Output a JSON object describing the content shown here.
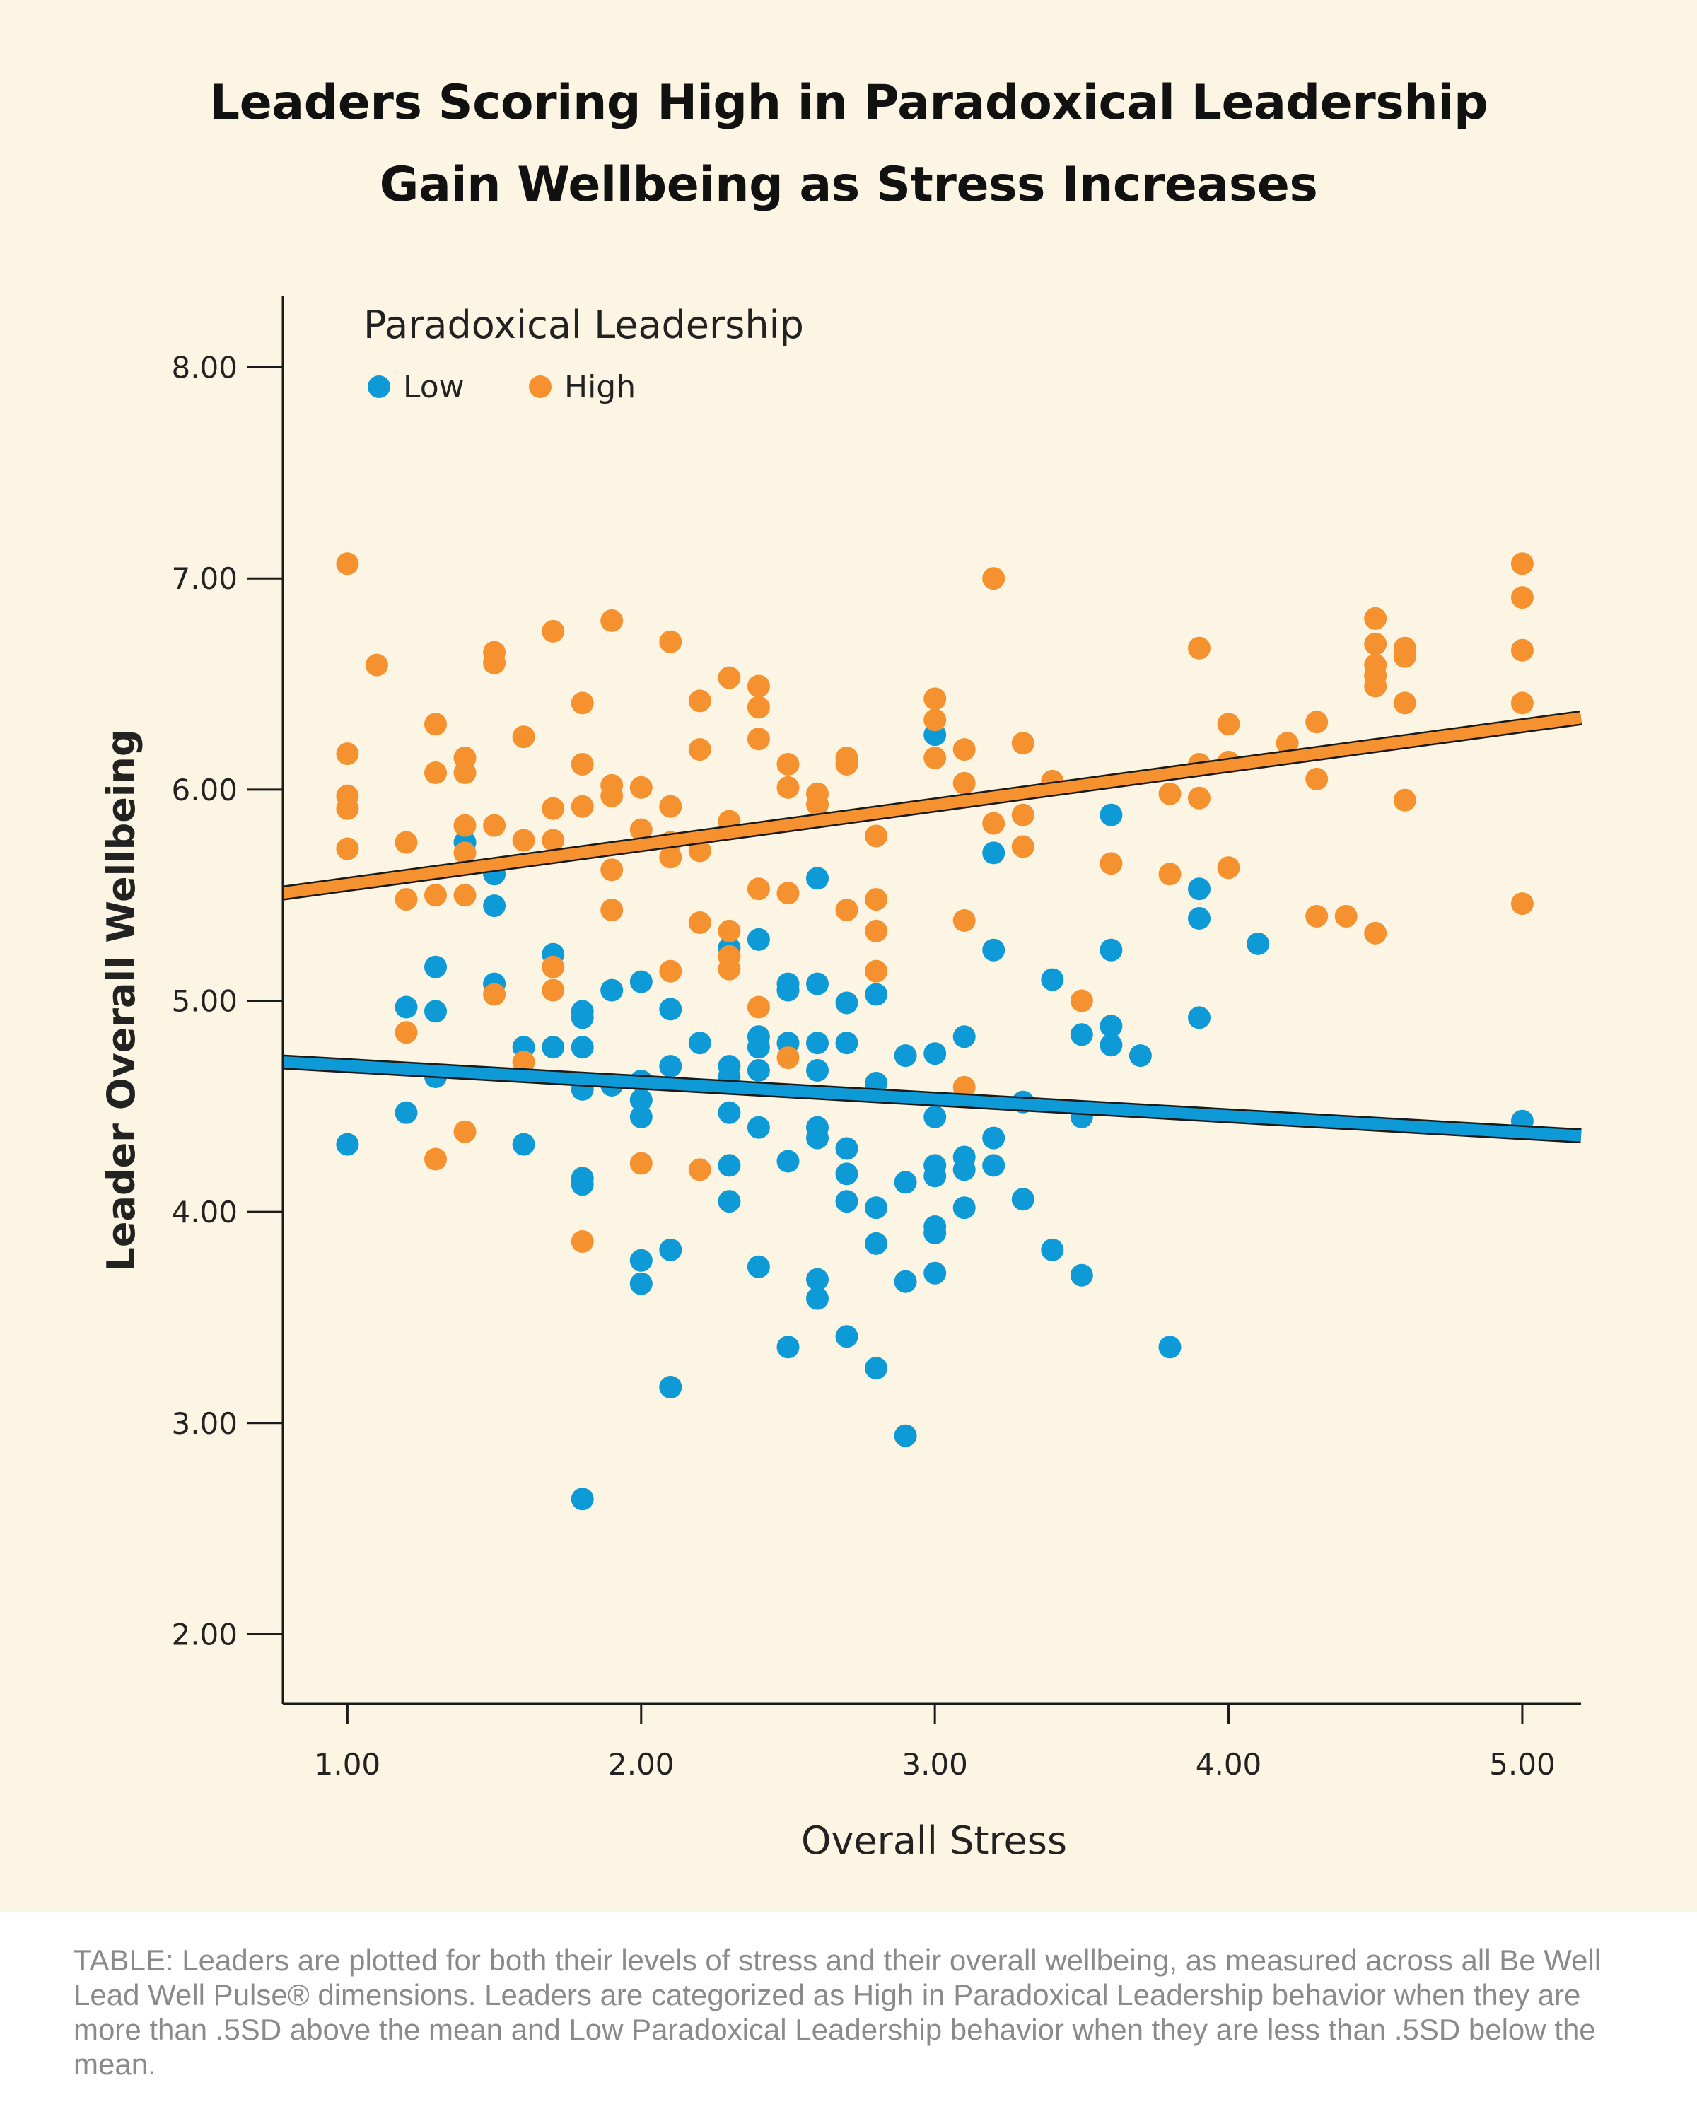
{
  "title": {
    "line1": "Leaders Scoring High in Paradoxical Leadership",
    "line2": "Gain Wellbeing as Stress Increases"
  },
  "legend": {
    "title": "Paradoxical Leadership",
    "items": [
      {
        "label": "Low",
        "color": "#0d9ad6"
      },
      {
        "label": "High",
        "color": "#f5922f"
      }
    ],
    "placement": "top-left"
  },
  "caption": "TABLE: Leaders are plotted for both their levels of stress and their overall wellbeing, as measured across all Be Well Lead Well Pulse® dimensions. Leaders are categorized as High in Paradoxical Leadership behavior when they are more than .5SD above the mean and Low Paradoxical Leadership behavior when they are less than .5SD below the mean.",
  "chart_data": {
    "type": "scatter",
    "xlabel": "Overall Stress",
    "ylabel": "Leader Overall Wellbeing",
    "xlim": [
      0.78,
      5.2
    ],
    "ylim": [
      1.67,
      8.34
    ],
    "xticks": [
      "1.00",
      "2.00",
      "3.00",
      "4.00",
      "5.00"
    ],
    "yticks": [
      "2.00",
      "3.00",
      "4.00",
      "5.00",
      "6.00",
      "7.00",
      "8.00"
    ],
    "grid": false,
    "series": [
      {
        "name": "Low",
        "color": "#0d9ad6",
        "fit_line": {
          "x": [
            0.78,
            5.2
          ],
          "y": [
            4.71,
            4.36
          ]
        },
        "points": [
          [
            1.0,
            4.32
          ],
          [
            1.2,
            4.97
          ],
          [
            1.2,
            4.47
          ],
          [
            1.3,
            5.16
          ],
          [
            1.3,
            4.95
          ],
          [
            1.3,
            4.64
          ],
          [
            1.4,
            5.75
          ],
          [
            1.5,
            5.6
          ],
          [
            1.5,
            5.45
          ],
          [
            1.5,
            5.08
          ],
          [
            1.6,
            4.78
          ],
          [
            1.6,
            4.32
          ],
          [
            1.7,
            5.22
          ],
          [
            1.7,
            4.78
          ],
          [
            1.8,
            4.95
          ],
          [
            1.8,
            4.92
          ],
          [
            1.8,
            4.78
          ],
          [
            1.8,
            4.58
          ],
          [
            1.8,
            4.16
          ],
          [
            1.8,
            4.13
          ],
          [
            1.8,
            2.64
          ],
          [
            1.9,
            5.05
          ],
          [
            1.9,
            4.6
          ],
          [
            2.0,
            5.09
          ],
          [
            2.0,
            4.62
          ],
          [
            2.0,
            4.53
          ],
          [
            2.0,
            4.45
          ],
          [
            2.0,
            3.77
          ],
          [
            2.0,
            3.66
          ],
          [
            2.1,
            4.96
          ],
          [
            2.1,
            4.69
          ],
          [
            2.1,
            3.82
          ],
          [
            2.1,
            3.17
          ],
          [
            2.2,
            4.8
          ],
          [
            2.3,
            5.25
          ],
          [
            2.3,
            4.69
          ],
          [
            2.3,
            4.64
          ],
          [
            2.3,
            4.47
          ],
          [
            2.3,
            4.22
          ],
          [
            2.3,
            4.05
          ],
          [
            2.4,
            5.29
          ],
          [
            2.4,
            4.83
          ],
          [
            2.4,
            4.78
          ],
          [
            2.4,
            4.67
          ],
          [
            2.4,
            4.4
          ],
          [
            2.4,
            3.74
          ],
          [
            2.5,
            5.08
          ],
          [
            2.5,
            5.05
          ],
          [
            2.5,
            4.8
          ],
          [
            2.5,
            4.24
          ],
          [
            2.5,
            3.36
          ],
          [
            2.6,
            5.58
          ],
          [
            2.6,
            5.08
          ],
          [
            2.6,
            4.8
          ],
          [
            2.6,
            4.67
          ],
          [
            2.6,
            4.4
          ],
          [
            2.6,
            4.35
          ],
          [
            2.6,
            3.68
          ],
          [
            2.6,
            3.59
          ],
          [
            2.7,
            4.99
          ],
          [
            2.7,
            4.8
          ],
          [
            2.7,
            4.3
          ],
          [
            2.7,
            4.18
          ],
          [
            2.7,
            4.05
          ],
          [
            2.7,
            3.41
          ],
          [
            2.8,
            5.03
          ],
          [
            2.8,
            4.61
          ],
          [
            2.8,
            4.02
          ],
          [
            2.8,
            3.85
          ],
          [
            2.8,
            3.26
          ],
          [
            2.9,
            4.74
          ],
          [
            2.9,
            4.14
          ],
          [
            2.9,
            3.67
          ],
          [
            2.9,
            2.94
          ],
          [
            3.0,
            6.26
          ],
          [
            3.0,
            4.75
          ],
          [
            3.0,
            4.45
          ],
          [
            3.0,
            4.22
          ],
          [
            3.0,
            4.17
          ],
          [
            3.0,
            3.93
          ],
          [
            3.0,
            3.9
          ],
          [
            3.0,
            3.71
          ],
          [
            3.1,
            4.83
          ],
          [
            3.1,
            4.26
          ],
          [
            3.1,
            4.2
          ],
          [
            3.1,
            4.02
          ],
          [
            3.2,
            5.7
          ],
          [
            3.2,
            5.24
          ],
          [
            3.2,
            4.35
          ],
          [
            3.2,
            4.22
          ],
          [
            3.3,
            4.52
          ],
          [
            3.3,
            4.06
          ],
          [
            3.4,
            5.1
          ],
          [
            3.4,
            3.82
          ],
          [
            3.5,
            4.84
          ],
          [
            3.5,
            4.45
          ],
          [
            3.5,
            3.7
          ],
          [
            3.6,
            5.88
          ],
          [
            3.6,
            5.24
          ],
          [
            3.6,
            4.88
          ],
          [
            3.6,
            4.79
          ],
          [
            3.7,
            4.74
          ],
          [
            3.8,
            3.36
          ],
          [
            3.9,
            5.53
          ],
          [
            3.9,
            5.39
          ],
          [
            3.9,
            4.92
          ],
          [
            4.1,
            5.27
          ],
          [
            5.0,
            4.43
          ]
        ]
      },
      {
        "name": "High",
        "color": "#f5922f",
        "fit_line": {
          "x": [
            0.78,
            5.2
          ],
          "y": [
            5.51,
            6.34
          ]
        },
        "points": [
          [
            1.0,
            7.07
          ],
          [
            1.0,
            6.17
          ],
          [
            1.0,
            5.97
          ],
          [
            1.0,
            5.91
          ],
          [
            1.0,
            5.72
          ],
          [
            1.1,
            6.59
          ],
          [
            1.2,
            5.75
          ],
          [
            1.2,
            5.48
          ],
          [
            1.2,
            4.85
          ],
          [
            1.3,
            6.31
          ],
          [
            1.3,
            6.08
          ],
          [
            1.3,
            5.5
          ],
          [
            1.3,
            4.25
          ],
          [
            1.4,
            6.15
          ],
          [
            1.4,
            6.08
          ],
          [
            1.4,
            5.83
          ],
          [
            1.4,
            5.7
          ],
          [
            1.4,
            5.5
          ],
          [
            1.4,
            4.38
          ],
          [
            1.5,
            6.65
          ],
          [
            1.5,
            6.6
          ],
          [
            1.5,
            5.83
          ],
          [
            1.5,
            5.03
          ],
          [
            1.6,
            6.25
          ],
          [
            1.6,
            5.76
          ],
          [
            1.6,
            4.71
          ],
          [
            1.7,
            6.75
          ],
          [
            1.7,
            5.91
          ],
          [
            1.7,
            5.76
          ],
          [
            1.7,
            5.16
          ],
          [
            1.7,
            5.05
          ],
          [
            1.8,
            6.41
          ],
          [
            1.8,
            6.12
          ],
          [
            1.8,
            5.92
          ],
          [
            1.8,
            3.86
          ],
          [
            1.9,
            6.8
          ],
          [
            1.9,
            6.02
          ],
          [
            1.9,
            5.97
          ],
          [
            1.9,
            5.62
          ],
          [
            1.9,
            5.43
          ],
          [
            2.0,
            6.01
          ],
          [
            2.0,
            5.81
          ],
          [
            2.0,
            4.23
          ],
          [
            2.1,
            6.7
          ],
          [
            2.1,
            5.92
          ],
          [
            2.1,
            5.75
          ],
          [
            2.1,
            5.68
          ],
          [
            2.1,
            5.14
          ],
          [
            2.2,
            6.42
          ],
          [
            2.2,
            6.19
          ],
          [
            2.2,
            5.71
          ],
          [
            2.2,
            5.37
          ],
          [
            2.2,
            4.2
          ],
          [
            2.3,
            6.53
          ],
          [
            2.3,
            5.85
          ],
          [
            2.3,
            5.33
          ],
          [
            2.3,
            5.21
          ],
          [
            2.3,
            5.15
          ],
          [
            2.4,
            6.49
          ],
          [
            2.4,
            6.39
          ],
          [
            2.4,
            6.24
          ],
          [
            2.4,
            5.53
          ],
          [
            2.4,
            4.97
          ],
          [
            2.5,
            6.12
          ],
          [
            2.5,
            6.01
          ],
          [
            2.5,
            5.51
          ],
          [
            2.5,
            4.73
          ],
          [
            2.6,
            5.98
          ],
          [
            2.6,
            5.93
          ],
          [
            2.7,
            6.15
          ],
          [
            2.7,
            6.12
          ],
          [
            2.7,
            5.43
          ],
          [
            2.8,
            5.78
          ],
          [
            2.8,
            5.48
          ],
          [
            2.8,
            5.33
          ],
          [
            2.8,
            5.14
          ],
          [
            3.0,
            6.43
          ],
          [
            3.0,
            6.33
          ],
          [
            3.0,
            6.15
          ],
          [
            3.1,
            6.19
          ],
          [
            3.1,
            6.03
          ],
          [
            3.1,
            5.38
          ],
          [
            3.1,
            4.59
          ],
          [
            3.2,
            7.0
          ],
          [
            3.2,
            5.84
          ],
          [
            3.3,
            6.22
          ],
          [
            3.3,
            5.88
          ],
          [
            3.3,
            5.73
          ],
          [
            3.4,
            6.04
          ],
          [
            3.5,
            5.0
          ],
          [
            3.6,
            5.65
          ],
          [
            3.8,
            5.98
          ],
          [
            3.8,
            5.6
          ],
          [
            3.9,
            6.67
          ],
          [
            3.9,
            6.12
          ],
          [
            3.9,
            5.96
          ],
          [
            4.0,
            6.31
          ],
          [
            4.0,
            6.13
          ],
          [
            4.0,
            5.63
          ],
          [
            4.2,
            6.22
          ],
          [
            4.3,
            6.32
          ],
          [
            4.3,
            6.05
          ],
          [
            4.3,
            5.4
          ],
          [
            4.4,
            5.4
          ],
          [
            4.5,
            6.81
          ],
          [
            4.5,
            6.69
          ],
          [
            4.5,
            6.59
          ],
          [
            4.5,
            6.54
          ],
          [
            4.5,
            6.49
          ],
          [
            4.5,
            5.32
          ],
          [
            4.6,
            6.67
          ],
          [
            4.6,
            6.63
          ],
          [
            4.6,
            6.41
          ],
          [
            4.6,
            5.95
          ],
          [
            5.0,
            7.07
          ],
          [
            5.0,
            6.91
          ],
          [
            5.0,
            6.66
          ],
          [
            5.0,
            6.41
          ],
          [
            5.0,
            5.46
          ]
        ]
      }
    ]
  }
}
